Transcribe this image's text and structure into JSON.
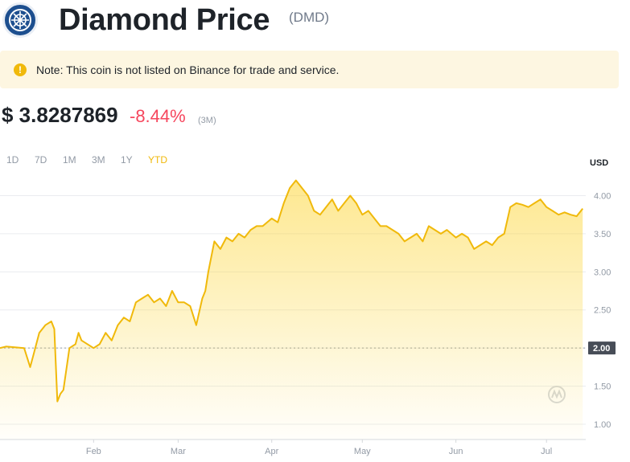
{
  "header": {
    "title": "Diamond Price",
    "ticker": "(DMD)",
    "logo_icon": "diamond-coin-logo-icon",
    "brand_color": "#1d4f8f"
  },
  "note": {
    "icon": "warning-info-icon",
    "text": "Note: This coin is not listed on Binance for trade and service."
  },
  "price": {
    "value": "$ 3.8287869",
    "change": "-8.44%",
    "period": "(3M)",
    "change_color": "#f6465d"
  },
  "ranges": [
    {
      "label": "1D",
      "active": false
    },
    {
      "label": "7D",
      "active": false
    },
    {
      "label": "1M",
      "active": false
    },
    {
      "label": "3M",
      "active": false
    },
    {
      "label": "1Y",
      "active": false
    },
    {
      "label": "YTD",
      "active": true
    }
  ],
  "chart_data": {
    "type": "area",
    "currency": "USD",
    "color": "#f0b90b",
    "y_ticks": [
      "1.00",
      "1.50",
      "2.00",
      "2.50",
      "3.00",
      "3.50",
      "4.00"
    ],
    "ylim": [
      0.8,
      4.3
    ],
    "x_ticks": [
      "Feb",
      "Mar",
      "Apr",
      "May",
      "Jun",
      "Jul"
    ],
    "reference_value": 2.0,
    "reference_label": "2.00",
    "watermark_icon": "coinmarketcap-watermark-icon",
    "x": [
      "Jan 1",
      "Jan 3",
      "Jan 6",
      "Jan 9",
      "Jan 11",
      "Jan 12",
      "Jan 14",
      "Jan 16",
      "Jan 18",
      "Jan 19",
      "Jan 20",
      "Jan 21",
      "Jan 22",
      "Jan 24",
      "Jan 26",
      "Jan 27",
      "Jan 28",
      "Feb 1",
      "Feb 3",
      "Feb 5",
      "Feb 7",
      "Feb 9",
      "Feb 11",
      "Feb 13",
      "Feb 15",
      "Feb 17",
      "Feb 19",
      "Feb 21",
      "Feb 23",
      "Feb 25",
      "Feb 27",
      "Mar 1",
      "Mar 3",
      "Mar 5",
      "Mar 7",
      "Mar 9",
      "Mar 10",
      "Mar 11",
      "Mar 13",
      "Mar 15",
      "Mar 17",
      "Mar 19",
      "Mar 21",
      "Mar 23",
      "Mar 25",
      "Mar 27",
      "Mar 29",
      "Apr 1",
      "Apr 3",
      "Apr 5",
      "Apr 7",
      "Apr 9",
      "Apr 11",
      "Apr 13",
      "Apr 15",
      "Apr 17",
      "Apr 19",
      "Apr 21",
      "Apr 23",
      "Apr 25",
      "Apr 27",
      "Apr 29",
      "May 1",
      "May 3",
      "May 5",
      "May 7",
      "May 9",
      "May 11",
      "May 13",
      "May 15",
      "May 17",
      "May 19",
      "May 21",
      "May 23",
      "May 25",
      "May 27",
      "May 29",
      "Jun 1",
      "Jun 3",
      "Jun 5",
      "Jun 7",
      "Jun 9",
      "Jun 11",
      "Jun 13",
      "Jun 15",
      "Jun 17",
      "Jun 19",
      "Jun 21",
      "Jun 23",
      "Jun 25",
      "Jun 27",
      "Jun 29",
      "Jul 1",
      "Jul 3",
      "Jul 5",
      "Jul 7",
      "Jul 9",
      "Jul 11",
      "Jul 13"
    ],
    "values": [
      2.0,
      2.02,
      2.01,
      2.0,
      1.75,
      1.9,
      2.2,
      2.3,
      2.35,
      2.25,
      1.3,
      1.4,
      1.45,
      2.0,
      2.05,
      2.2,
      2.1,
      2.0,
      2.05,
      2.2,
      2.1,
      2.3,
      2.4,
      2.35,
      2.6,
      2.65,
      2.7,
      2.6,
      2.65,
      2.55,
      2.75,
      2.6,
      2.6,
      2.55,
      2.3,
      2.65,
      2.75,
      3.0,
      3.4,
      3.3,
      3.45,
      3.4,
      3.5,
      3.45,
      3.55,
      3.6,
      3.6,
      3.7,
      3.65,
      3.9,
      4.1,
      4.2,
      4.1,
      4.0,
      3.8,
      3.75,
      3.85,
      3.95,
      3.8,
      3.9,
      4.0,
      3.9,
      3.75,
      3.8,
      3.7,
      3.6,
      3.6,
      3.55,
      3.5,
      3.4,
      3.45,
      3.5,
      3.4,
      3.6,
      3.55,
      3.5,
      3.55,
      3.45,
      3.5,
      3.45,
      3.3,
      3.35,
      3.4,
      3.35,
      3.45,
      3.5,
      3.85,
      3.9,
      3.88,
      3.85,
      3.9,
      3.95,
      3.85,
      3.8,
      3.75,
      3.78,
      3.75,
      3.73,
      3.83
    ]
  }
}
